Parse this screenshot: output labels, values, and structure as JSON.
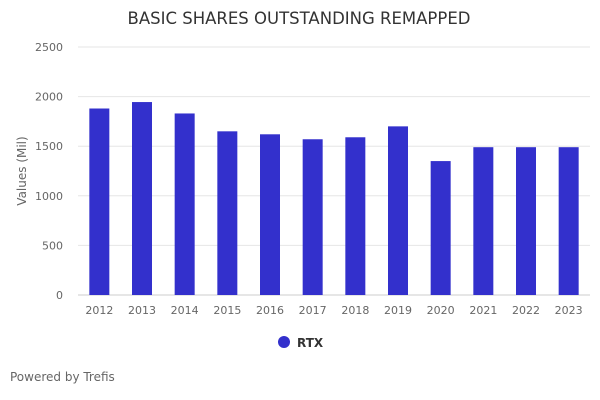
{
  "chart_data": {
    "type": "bar",
    "title": "BASIC SHARES OUTSTANDING REMAPPED",
    "xlabel": "",
    "ylabel": "Values (Mil)",
    "ylim": [
      0,
      2500
    ],
    "yticks": [
      0,
      500,
      1000,
      1500,
      2000,
      2500
    ],
    "grid": true,
    "legend_position": "bottom-center",
    "categories": [
      "2012",
      "2013",
      "2014",
      "2015",
      "2016",
      "2017",
      "2018",
      "2019",
      "2020",
      "2021",
      "2022",
      "2023"
    ],
    "series": [
      {
        "name": "RTX",
        "color": "#3330cc",
        "values": [
          1880,
          1945,
          1830,
          1650,
          1620,
          1570,
          1590,
          1700,
          1350,
          1490,
          1490,
          1490
        ]
      }
    ]
  },
  "footer": {
    "credit": "Powered by Trefis"
  }
}
